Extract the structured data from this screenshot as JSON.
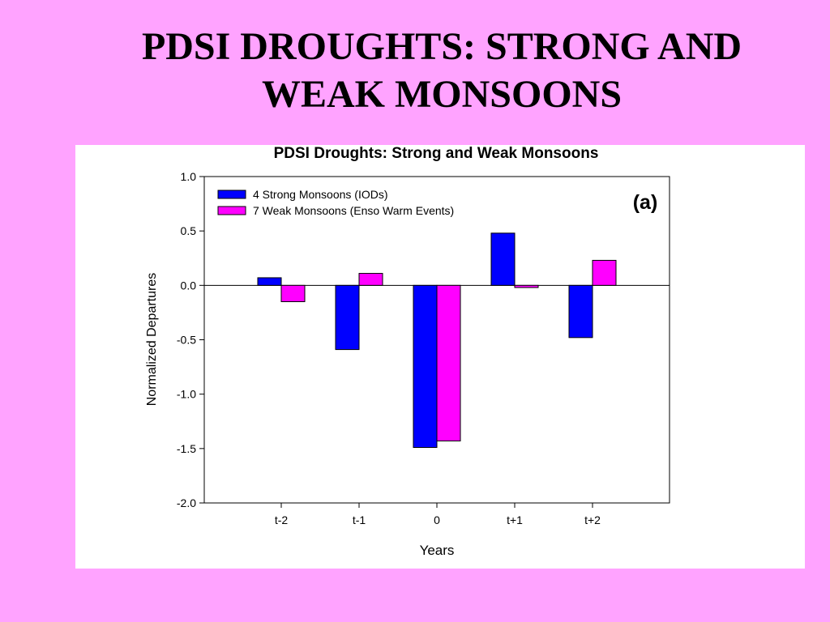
{
  "slide": {
    "title_line1": "PDSI DROUGHTS: STRONG AND",
    "title_line2": "WEAK MONSOONS"
  },
  "chart_data": {
    "type": "bar",
    "title": "PDSI Droughts: Strong and Weak Monsoons",
    "panel_label": "(a)",
    "xlabel": "Years",
    "ylabel": "Normalized Departures",
    "categories": [
      "t-2",
      "t-1",
      "0",
      "t+1",
      "t+2"
    ],
    "ylim": [
      -2.0,
      1.0
    ],
    "yticks": [
      1.0,
      0.5,
      0.0,
      -0.5,
      -1.0,
      -1.5,
      -2.0
    ],
    "ytick_labels": [
      "1.0",
      "0.5",
      "0.0",
      "-0.5",
      "-1.0",
      "-1.5",
      "-2.0"
    ],
    "grid": false,
    "legend_position": "top-left",
    "series": [
      {
        "name": "4 Strong Monsoons (IODs)",
        "color": "#0000ff",
        "values": [
          0.07,
          -0.59,
          -1.49,
          0.48,
          -0.48
        ]
      },
      {
        "name": "7 Weak Monsoons (Enso Warm Events)",
        "color": "#ff00ff",
        "values": [
          -0.15,
          0.11,
          -1.43,
          -0.02,
          0.23
        ]
      }
    ]
  }
}
